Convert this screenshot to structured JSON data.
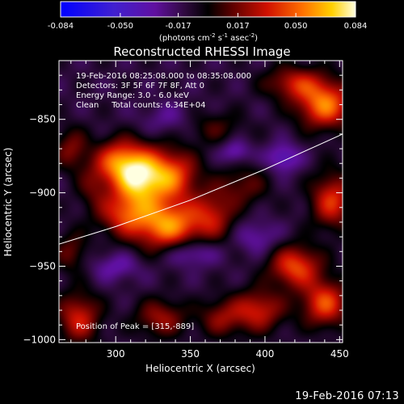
{
  "chart_data": {
    "type": "heatmap",
    "title": "Reconstructed RHESSI Image",
    "xlabel": "Heliocentric X (arcsec)",
    "ylabel": "Heliocentric Y (arcsec)",
    "xlim": [
      262,
      452
    ],
    "ylim": [
      -1002,
      -810
    ],
    "x_ticks": [
      300,
      350,
      400,
      450
    ],
    "y_ticks": [
      -850,
      -900,
      -950,
      -1000
    ],
    "colorbar": {
      "min": -0.084,
      "max": 0.084,
      "ticks": [
        "-0.084",
        "-0.050",
        "-0.017",
        "0.017",
        "0.050",
        "0.084"
      ],
      "units_label": "(photons cm",
      "units_exp1": "-2",
      "units_mid": " s",
      "units_exp2": "-1",
      "units_mid2": " asec",
      "units_exp3": "-2",
      "units_end": ")"
    },
    "info_lines": [
      "19-Feb-2016 08:25:08.000 to 08:35:08.000",
      "Detectors: 3F 5F 6F 7F 8F, Att 0",
      "Energy Range: 3.0 - 6.0 keV",
      "Clean     Total counts: 6.34E+04"
    ],
    "peak_label": "Position of Peak = [315,-889]",
    "limb_curve": [
      [
        262,
        -935
      ],
      [
        300,
        -923
      ],
      [
        350,
        -905
      ],
      [
        400,
        -884
      ],
      [
        452,
        -860
      ]
    ],
    "sources": [
      {
        "x": 315,
        "y": -889,
        "amp": 0.084,
        "sx": 12,
        "sy": 14
      },
      {
        "x": 300,
        "y": -878,
        "amp": 0.045,
        "sx": 10,
        "sy": 10
      },
      {
        "x": 338,
        "y": -888,
        "amp": 0.055,
        "sx": 12,
        "sy": 12
      },
      {
        "x": 335,
        "y": -922,
        "amp": 0.07,
        "sx": 16,
        "sy": 12
      },
      {
        "x": 305,
        "y": -915,
        "amp": 0.04,
        "sx": 12,
        "sy": 10
      },
      {
        "x": 365,
        "y": -915,
        "amp": 0.035,
        "sx": 10,
        "sy": 12
      },
      {
        "x": 385,
        "y": -895,
        "amp": 0.025,
        "sx": 12,
        "sy": 10
      },
      {
        "x": 285,
        "y": -895,
        "amp": 0.022,
        "sx": 8,
        "sy": 12
      },
      {
        "x": 440,
        "y": -840,
        "amp": 0.065,
        "sx": 13,
        "sy": 11
      },
      {
        "x": 420,
        "y": -825,
        "amp": 0.04,
        "sx": 14,
        "sy": 8
      },
      {
        "x": 445,
        "y": -905,
        "amp": 0.05,
        "sx": 10,
        "sy": 13
      },
      {
        "x": 420,
        "y": -950,
        "amp": 0.055,
        "sx": 12,
        "sy": 10
      },
      {
        "x": 440,
        "y": -975,
        "amp": 0.055,
        "sx": 11,
        "sy": 11
      },
      {
        "x": 395,
        "y": -980,
        "amp": 0.045,
        "sx": 12,
        "sy": 10
      },
      {
        "x": 275,
        "y": -985,
        "amp": 0.045,
        "sx": 10,
        "sy": 12
      },
      {
        "x": 330,
        "y": -985,
        "amp": 0.035,
        "sx": 12,
        "sy": 9
      },
      {
        "x": 370,
        "y": -985,
        "amp": 0.03,
        "sx": 10,
        "sy": 9
      },
      {
        "x": 270,
        "y": -870,
        "amp": 0.03,
        "sx": 8,
        "sy": 10
      },
      {
        "x": 365,
        "y": -855,
        "amp": 0.02,
        "sx": 14,
        "sy": 8
      },
      {
        "x": 270,
        "y": -940,
        "amp": 0.025,
        "sx": 8,
        "sy": 10
      },
      {
        "x": 350,
        "y": -940,
        "amp": -0.03,
        "sx": 12,
        "sy": 7
      },
      {
        "x": 412,
        "y": -876,
        "amp": -0.03,
        "sx": 8,
        "sy": 7
      },
      {
        "x": 380,
        "y": -872,
        "amp": -0.025,
        "sx": 7,
        "sy": 6
      },
      {
        "x": 300,
        "y": -950,
        "amp": -0.02,
        "sx": 12,
        "sy": 7
      },
      {
        "x": 395,
        "y": -930,
        "amp": -0.02,
        "sx": 10,
        "sy": 8
      },
      {
        "x": 335,
        "y": -850,
        "amp": -0.015,
        "sx": 14,
        "sy": 8
      }
    ],
    "base_level": -0.012
  },
  "footer": {
    "timestamp": "19-Feb-2016 07:13"
  }
}
